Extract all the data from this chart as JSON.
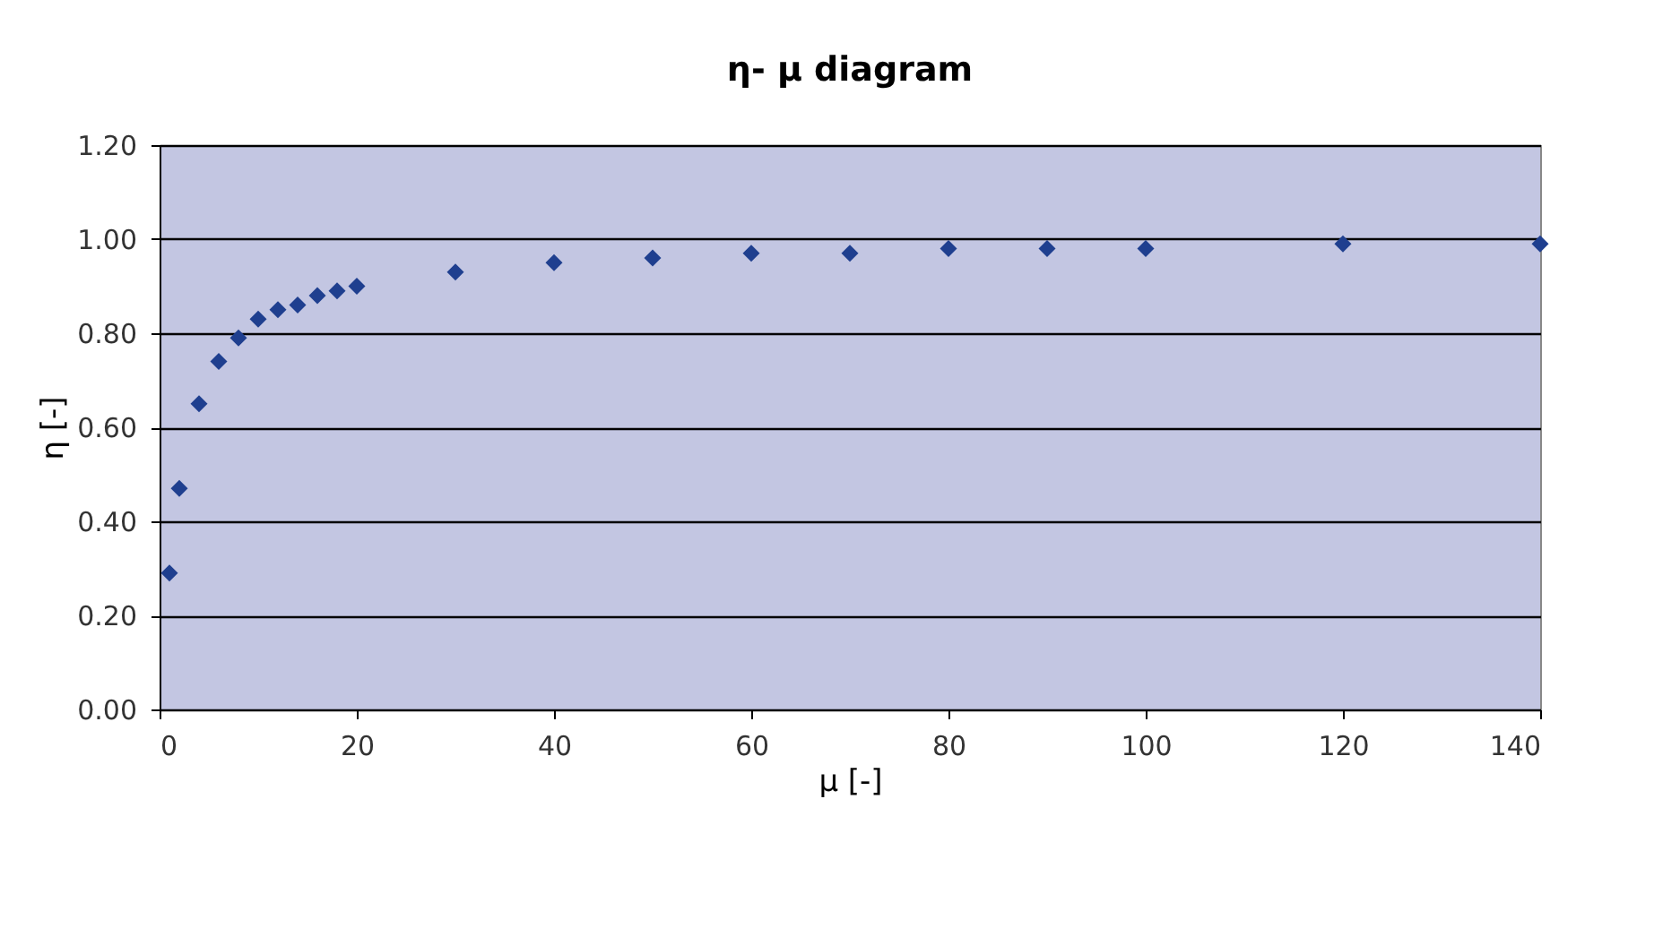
{
  "chart_data": {
    "type": "scatter",
    "title": "η- μ diagram",
    "xlabel": "μ [-]",
    "ylabel": "η [-]",
    "x": [
      1,
      2,
      4,
      6,
      8,
      10,
      12,
      14,
      16,
      18,
      20,
      30,
      40,
      50,
      60,
      70,
      80,
      90,
      100,
      120,
      140
    ],
    "series": [
      {
        "color": "#1f3f8f",
        "values": [
          0.29,
          0.47,
          0.65,
          0.74,
          0.79,
          0.83,
          0.85,
          0.86,
          0.88,
          0.89,
          0.9,
          0.93,
          0.95,
          0.96,
          0.97,
          0.97,
          0.98,
          0.98,
          0.98,
          0.99,
          0.99
        ]
      }
    ],
    "xlim": [
      0,
      140
    ],
    "xticks": [
      0,
      20,
      40,
      60,
      80,
      100,
      120,
      140
    ],
    "ylim": [
      0,
      1.2
    ],
    "yticks": [
      {
        "value": 0,
        "label": "0.00"
      },
      {
        "value": 0.2,
        "label": "0.20"
      },
      {
        "value": 0.4,
        "label": "0.40"
      },
      {
        "value": 0.6,
        "label": "0.60"
      },
      {
        "value": 0.8,
        "label": "0.80"
      },
      {
        "value": 1.0,
        "label": "1.00"
      },
      {
        "value": 1.2,
        "label": "1.20"
      }
    ],
    "grid": "y",
    "marker": "diamond"
  }
}
